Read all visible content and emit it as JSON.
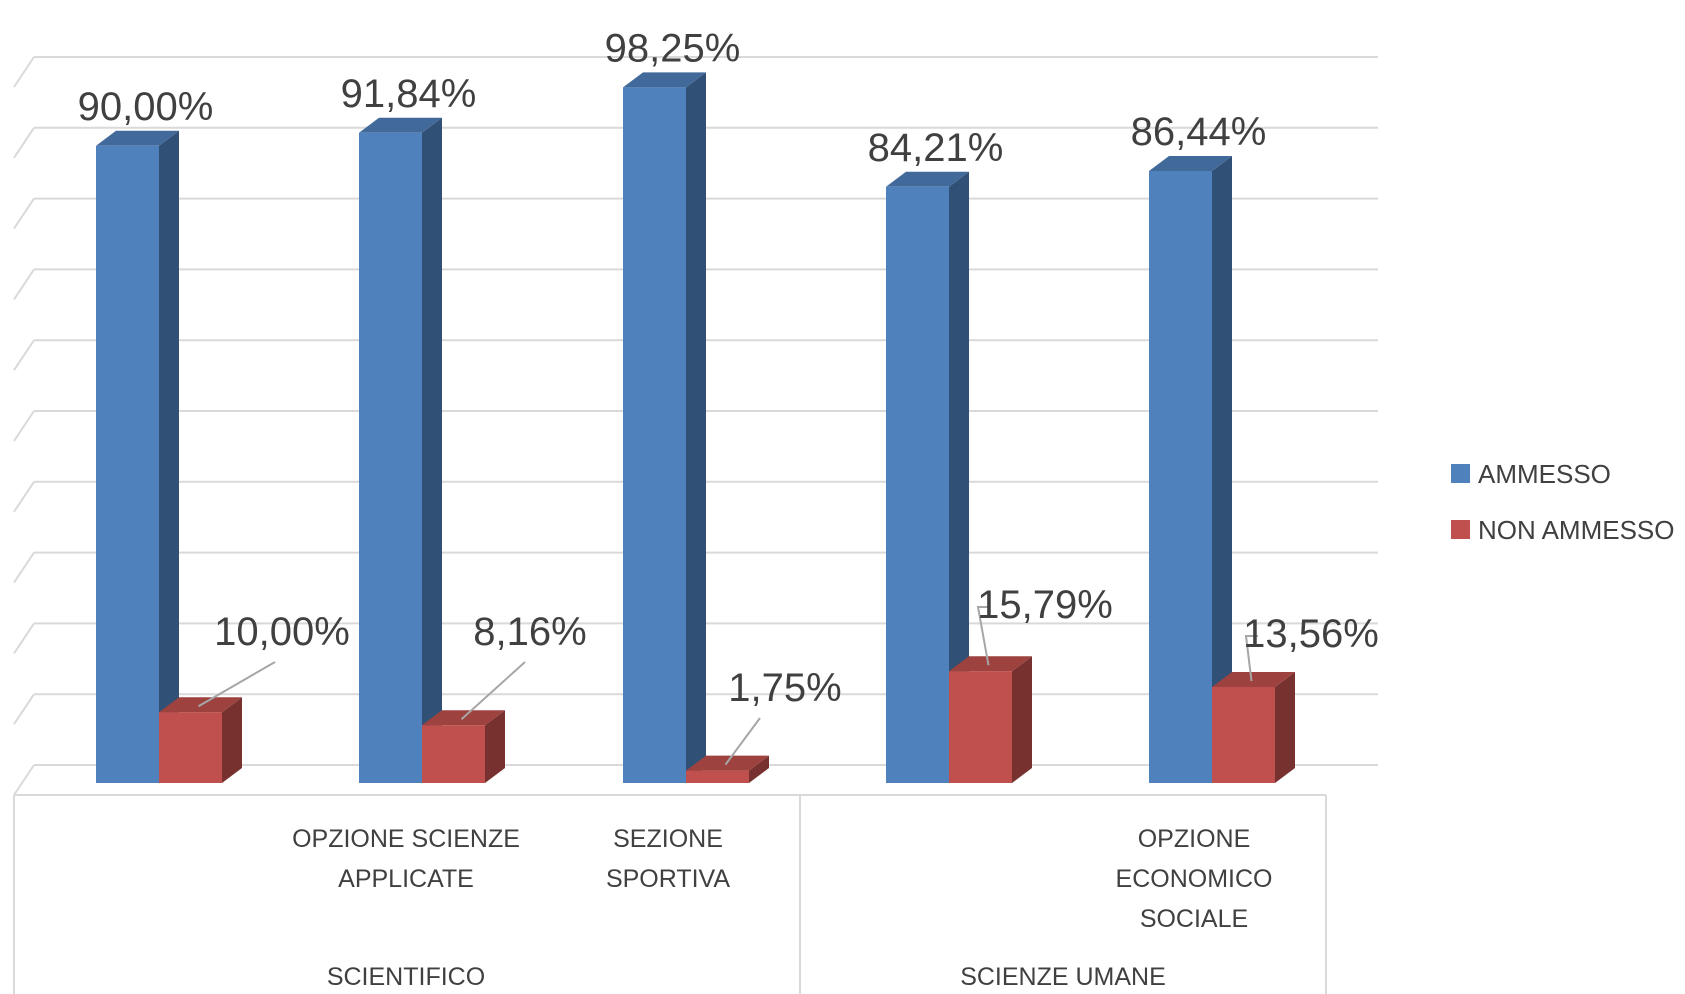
{
  "chart_data": {
    "type": "bar",
    "style": "3d-clustered-column",
    "categories": [
      {
        "group": "SCIENTIFICO",
        "label": ""
      },
      {
        "group": "SCIENTIFICO",
        "label": "OPZIONE SCIENZE APPLICATE"
      },
      {
        "group": "SCIENTIFICO",
        "label": "SEZIONE SPORTIVA"
      },
      {
        "group": "SCIENZE UMANE",
        "label": ""
      },
      {
        "group": "SCIENZE UMANE",
        "label": "OPZIONE ECONOMICO SOCIALE"
      }
    ],
    "category_lines": [
      [],
      [
        "OPZIONE SCIENZE",
        "APPLICATE"
      ],
      [
        "SEZIONE",
        "SPORTIVA"
      ],
      [],
      [
        "OPZIONE",
        "ECONOMICO",
        "SOCIALE"
      ]
    ],
    "groups": [
      "SCIENTIFICO",
      "SCIENZE UMANE"
    ],
    "series": [
      {
        "name": "AMMESSO",
        "color": "#4F81BD",
        "values": [
          90.0,
          91.84,
          98.25,
          84.21,
          86.44
        ],
        "labels": [
          "90,00%",
          "91,84%",
          "98,25%",
          "84,21%",
          "86,44%"
        ]
      },
      {
        "name": "NON AMMESSO",
        "color": "#C0504D",
        "values": [
          10.0,
          8.16,
          1.75,
          15.79,
          13.56
        ],
        "labels": [
          "10,00%",
          "8,16%",
          "1,75%",
          "15,79%",
          "13,56%"
        ]
      }
    ],
    "ylim": [
      0,
      100
    ],
    "grid": true,
    "legend_position": "right"
  }
}
